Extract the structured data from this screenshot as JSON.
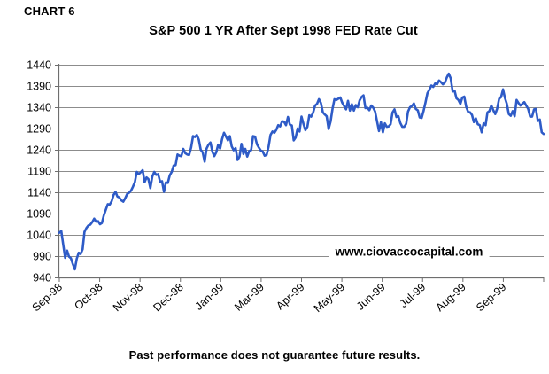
{
  "header": {
    "chart_label": "CHART 6"
  },
  "chart_data": {
    "type": "line",
    "title": "S&P 500 1 YR After Sept 1998 FED Rate Cut",
    "xlabel": "",
    "ylabel": "",
    "ylim": [
      940,
      1440
    ],
    "y_ticks": [
      1440,
      1390,
      1340,
      1290,
      1240,
      1190,
      1140,
      1090,
      1040,
      990,
      940
    ],
    "x_tick_labels": [
      "Sep-98",
      "Oct-98",
      "Nov-98",
      "Dec-98",
      "Jan-99",
      "Mar-99",
      "Apr-99",
      "May-99",
      "Jun-99",
      "Jul-99",
      "Aug-99",
      "Sep-99"
    ],
    "grid": "horizontal-only",
    "legend": "none",
    "line_color": "#2E5BC7",
    "grid_color": "#8c8c8c",
    "axis_color": "#6e6e6e",
    "series": [
      {
        "name": "S&P 500",
        "values": [
          1045,
          1049,
          1017,
          986,
          1003,
          989,
          985,
          971,
          959,
          984,
          998,
          995,
          1006,
          1047,
          1056,
          1062,
          1064,
          1070,
          1078,
          1071,
          1072,
          1065,
          1068,
          1086,
          1099,
          1112,
          1111,
          1119,
          1134,
          1141,
          1130,
          1128,
          1121,
          1118,
          1126,
          1136,
          1139,
          1144,
          1153,
          1164,
          1188,
          1183,
          1187,
          1192,
          1164,
          1175,
          1171,
          1150,
          1177,
          1188,
          1181,
          1183,
          1165,
          1166,
          1141,
          1163,
          1162,
          1180,
          1188,
          1203,
          1204,
          1229,
          1226,
          1225,
          1242,
          1232,
          1229,
          1228,
          1245,
          1272,
          1270,
          1275,
          1264,
          1240,
          1234,
          1212,
          1243,
          1252,
          1257,
          1235,
          1225,
          1234,
          1252,
          1243,
          1265,
          1280,
          1271,
          1262,
          1272,
          1248,
          1239,
          1244,
          1216,
          1224,
          1254,
          1230,
          1242,
          1224,
          1237,
          1239,
          1272,
          1271,
          1253,
          1245,
          1238,
          1236,
          1226,
          1228,
          1247,
          1275,
          1283,
          1280,
          1287,
          1298,
          1295,
          1307,
          1306,
          1298,
          1317,
          1299,
          1297,
          1262,
          1269,
          1290,
          1283,
          1318,
          1301,
          1286,
          1294,
          1321,
          1318,
          1327,
          1344,
          1348,
          1359,
          1350,
          1328,
          1323,
          1319,
          1289,
          1306,
          1336,
          1359,
          1357,
          1360,
          1363,
          1351,
          1343,
          1335,
          1355,
          1332,
          1347,
          1332,
          1345,
          1340,
          1356,
          1364,
          1368,
          1338,
          1339,
          1333,
          1344,
          1339,
          1330,
          1307,
          1284,
          1305,
          1281,
          1302,
          1294,
          1295,
          1300,
          1328,
          1335,
          1317,
          1319,
          1303,
          1294,
          1294,
          1301,
          1330,
          1340,
          1343,
          1349,
          1336,
          1333,
          1316,
          1315,
          1331,
          1351,
          1373,
          1381,
          1391,
          1388,
          1396,
          1394,
          1403,
          1399,
          1394,
          1398,
          1410,
          1419,
          1408,
          1377,
          1379,
          1361,
          1357,
          1348,
          1363,
          1365,
          1341,
          1329,
          1328,
          1322,
          1305,
          1314,
          1300,
          1298,
          1281,
          1302,
          1298,
          1328,
          1331,
          1344,
          1333,
          1324,
          1337,
          1360,
          1364,
          1382,
          1362,
          1348,
          1324,
          1320,
          1331,
          1319,
          1357,
          1350,
          1344,
          1348,
          1352,
          1344,
          1336,
          1318,
          1318,
          1335,
          1336,
          1308,
          1311,
          1281,
          1277
        ]
      }
    ]
  },
  "watermark": {
    "text": "www.ciovaccocapital.com"
  },
  "footer": {
    "caption": "Past performance does not guarantee future results."
  }
}
